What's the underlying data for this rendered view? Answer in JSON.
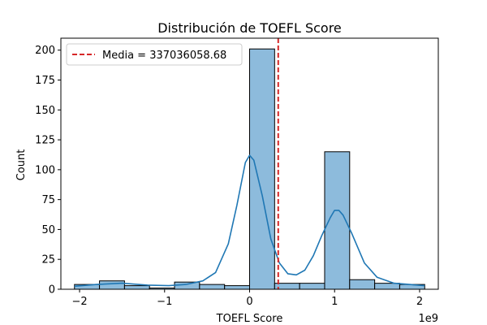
{
  "chart_data": {
    "type": "bar",
    "title": "Distribución de TOEFL Score",
    "xlabel": "TOEFL Score",
    "ylabel": "Count",
    "x_offset_label": "1e9",
    "xlim": [
      -2.22,
      2.22
    ],
    "ylim": [
      0,
      210
    ],
    "x_ticks": [
      -2,
      -1,
      0,
      1,
      2
    ],
    "x_tick_labels": [
      "−2",
      "−1",
      "0",
      "1",
      "2"
    ],
    "y_ticks": [
      0,
      25,
      50,
      75,
      100,
      125,
      150,
      175,
      200
    ],
    "y_tick_labels": [
      "0",
      "25",
      "50",
      "75",
      "100",
      "125",
      "150",
      "175",
      "200"
    ],
    "grid": false,
    "legend_position": "top-left",
    "bins": {
      "start": -2.06,
      "width": 0.2943,
      "counts": [
        4,
        7,
        3,
        1,
        6,
        4,
        3,
        201,
        5,
        5,
        115,
        8,
        5,
        4
      ]
    },
    "bar_color": "#8dbbdc",
    "bar_edge_color": "#000000",
    "kde": {
      "name": "kde",
      "color": "#1f77b4",
      "x": [
        -2.06,
        -1.8,
        -1.5,
        -1.2,
        -0.95,
        -0.75,
        -0.55,
        -0.4,
        -0.25,
        -0.15,
        -0.05,
        0.0,
        0.05,
        0.15,
        0.25,
        0.35,
        0.45,
        0.55,
        0.65,
        0.75,
        0.85,
        0.95,
        1.0,
        1.05,
        1.1,
        1.2,
        1.35,
        1.5,
        1.7,
        2.06
      ],
      "y": [
        2.5,
        4,
        5,
        3.5,
        3,
        4,
        7,
        14,
        38,
        70,
        106,
        112,
        108,
        78,
        42,
        22,
        13,
        12,
        16,
        28,
        45,
        60,
        66,
        66,
        62,
        47,
        22,
        10,
        5,
        3
      ]
    },
    "mean_line": {
      "name": "Media = 337036058.68",
      "x": 0.337,
      "color": "#d62728",
      "style": "dashed"
    }
  }
}
